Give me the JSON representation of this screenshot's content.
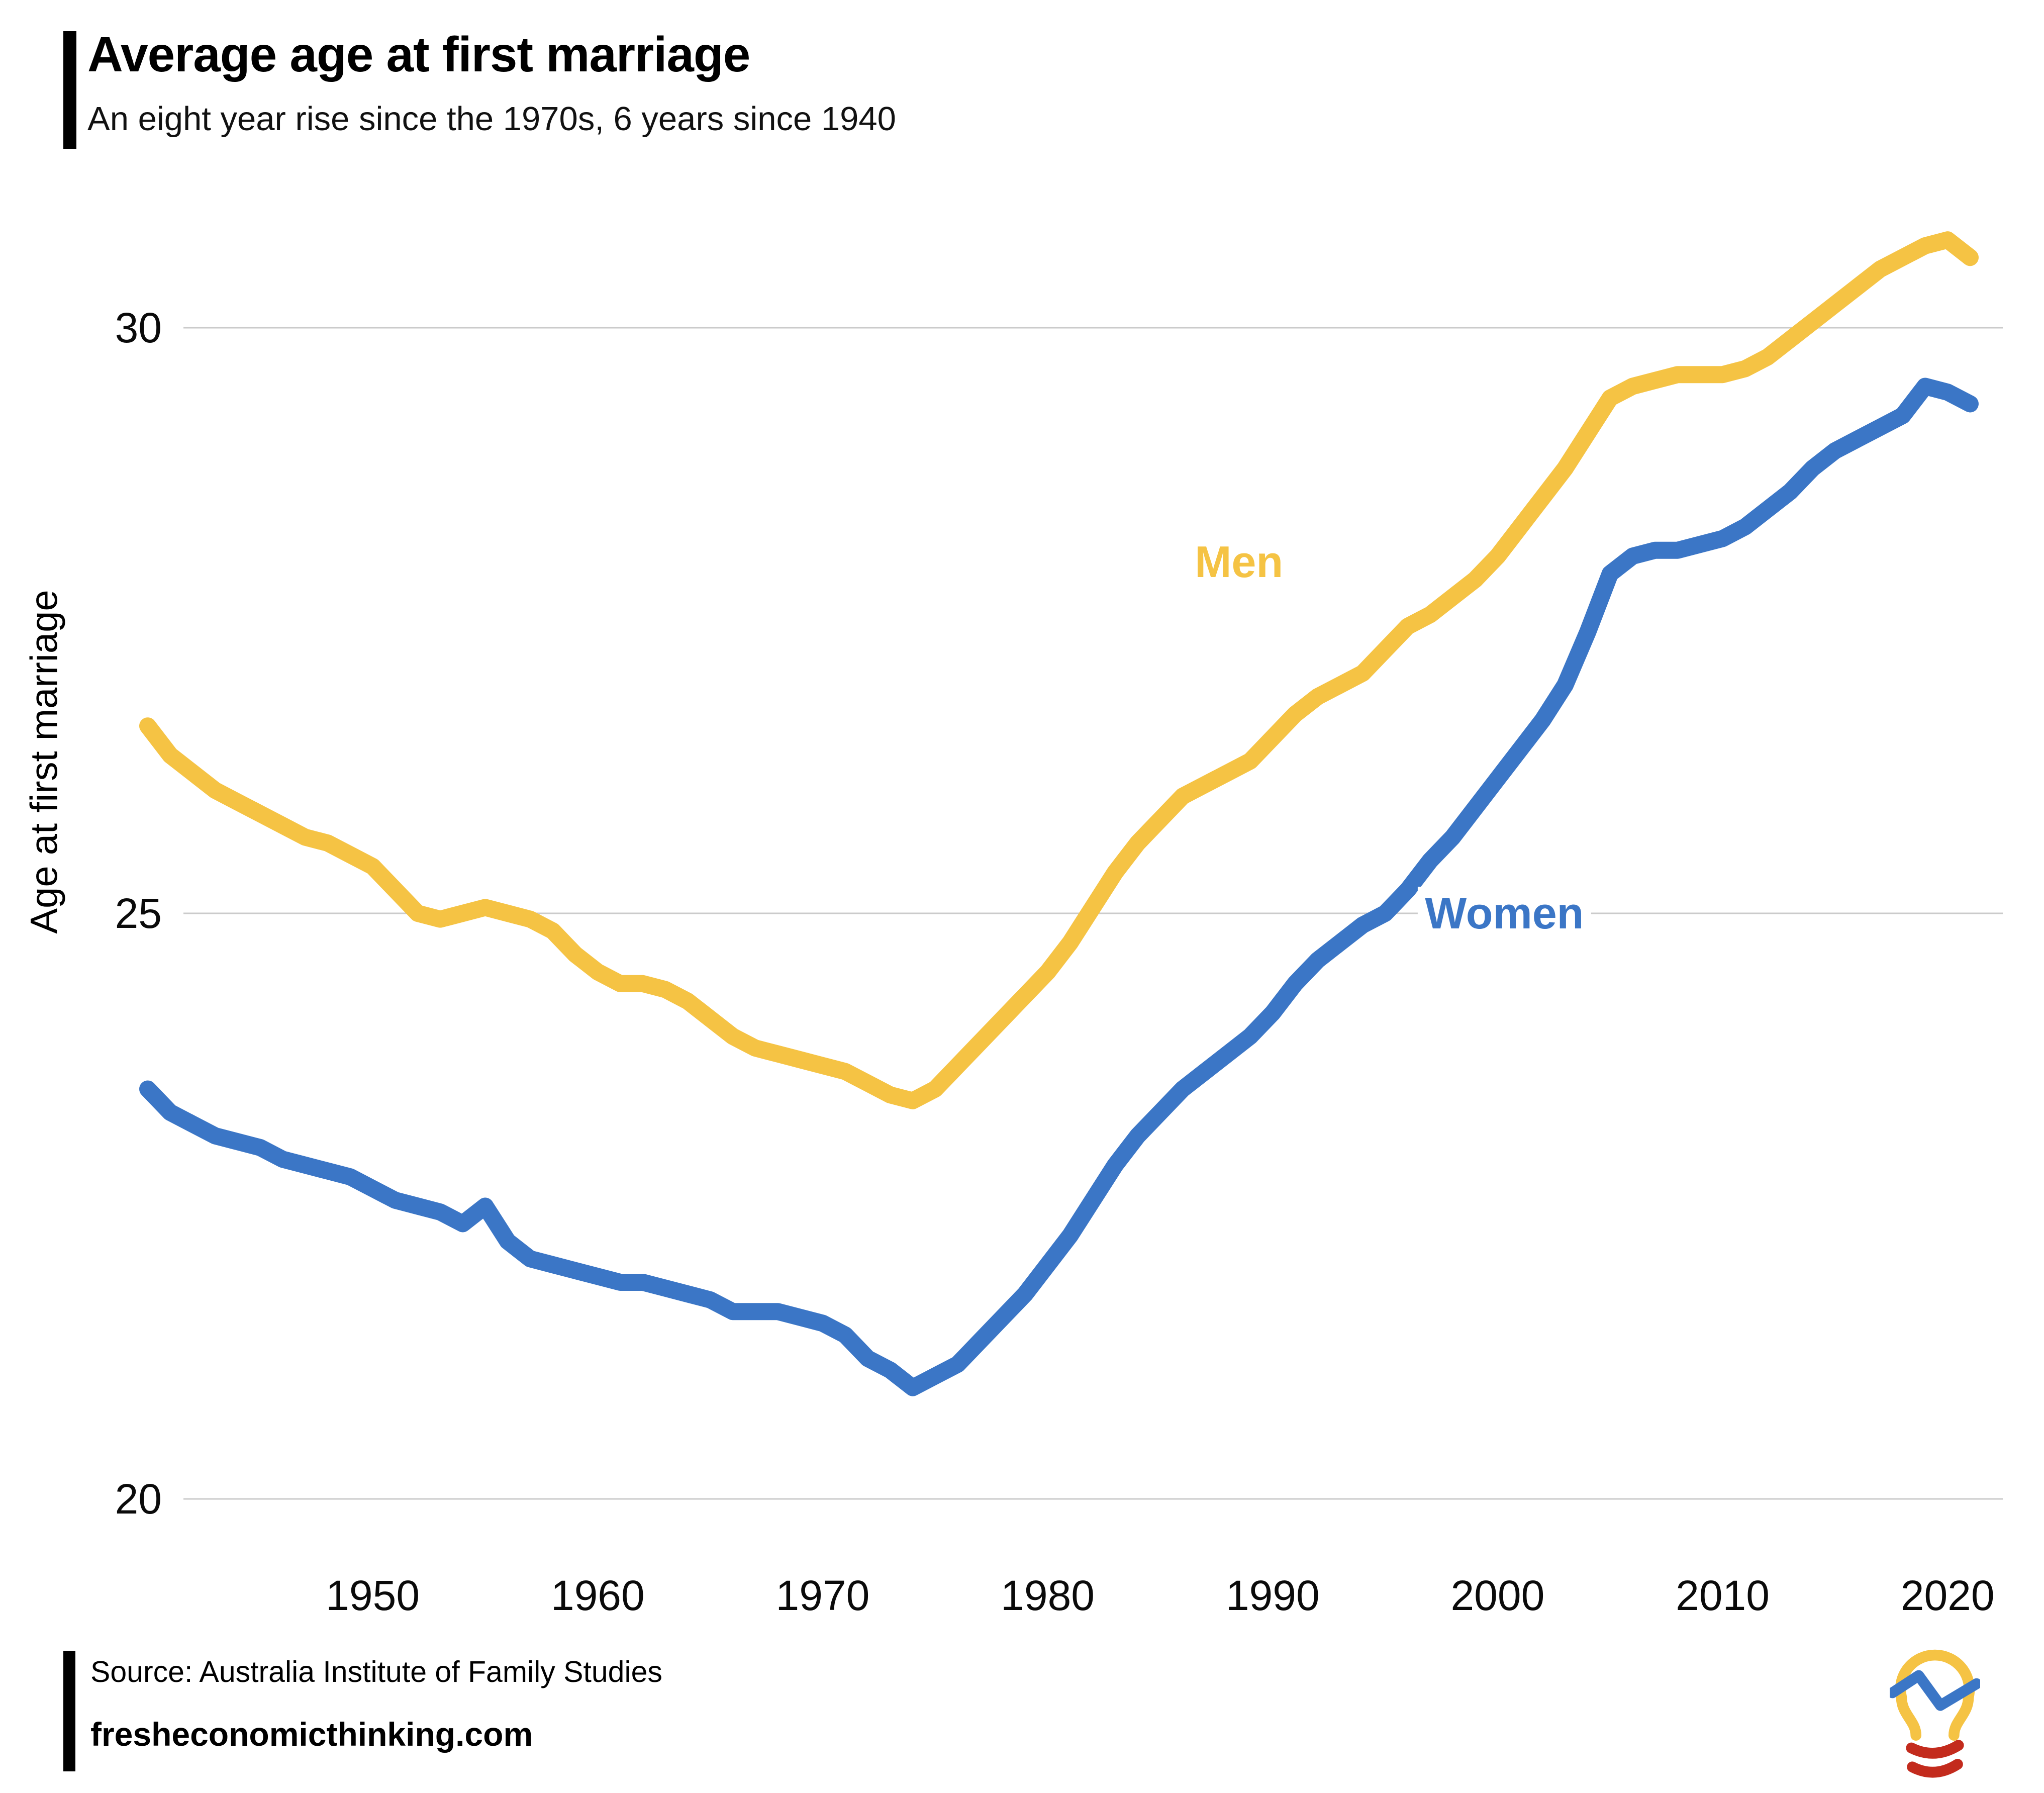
{
  "header": {
    "title": "Average age at first marriage",
    "subtitle": "An eight year rise since the 1970s, 6 years since 1940"
  },
  "footer": {
    "source": "Source: Australia Institute of Family Studies",
    "site": "fresheconomicthinking.com"
  },
  "logo": {
    "name": "fresh-economic-thinking-lightbulb-logo",
    "bulb_color": "#F5C344",
    "zigzag_color": "#3B76C6",
    "base_color": "#C32B1D"
  },
  "chart_data": {
    "type": "line",
    "title": "Average age at first marriage",
    "subtitle": "An eight year rise since the 1970s, 6 years since 1940",
    "xlabel": "",
    "ylabel": "Age at first marriage",
    "xlim": [
      1940,
      2021
    ],
    "ylim": [
      19.5,
      31.6
    ],
    "x_ticks": [
      1950,
      1960,
      1970,
      1980,
      1990,
      2000,
      2010,
      2020
    ],
    "y_ticks": [
      20,
      25,
      30
    ],
    "grid": "horizontal-only",
    "gridline_color": "#CBCBCB",
    "legend_position": "inline-labels",
    "years": [
      1940,
      1941,
      1942,
      1943,
      1944,
      1945,
      1946,
      1947,
      1948,
      1949,
      1950,
      1951,
      1952,
      1953,
      1954,
      1955,
      1956,
      1957,
      1958,
      1959,
      1960,
      1961,
      1962,
      1963,
      1964,
      1965,
      1966,
      1967,
      1968,
      1969,
      1970,
      1971,
      1972,
      1973,
      1974,
      1975,
      1976,
      1977,
      1978,
      1979,
      1980,
      1981,
      1982,
      1983,
      1984,
      1985,
      1986,
      1987,
      1988,
      1989,
      1990,
      1991,
      1992,
      1993,
      1994,
      1995,
      1996,
      1997,
      1998,
      1999,
      2000,
      2001,
      2002,
      2003,
      2004,
      2005,
      2006,
      2007,
      2008,
      2009,
      2010,
      2011,
      2012,
      2013,
      2014,
      2015,
      2016,
      2017,
      2018,
      2019,
      2020,
      2021
    ],
    "series": [
      {
        "name": "Men",
        "color": "#F5C344",
        "label": {
          "text": "Men",
          "year": 1988.5,
          "value": 28.0
        },
        "values": [
          26.6,
          26.35,
          26.2,
          26.05,
          25.95,
          25.85,
          25.75,
          25.65,
          25.6,
          25.5,
          25.4,
          25.2,
          25.0,
          24.95,
          25.0,
          25.05,
          25.0,
          24.95,
          24.85,
          24.65,
          24.5,
          24.4,
          24.4,
          24.35,
          24.25,
          24.1,
          23.95,
          23.85,
          23.8,
          23.75,
          23.7,
          23.65,
          23.55,
          23.45,
          23.4,
          23.5,
          23.7,
          23.9,
          24.1,
          24.3,
          24.5,
          24.75,
          25.05,
          25.35,
          25.6,
          25.8,
          26.0,
          26.1,
          26.2,
          26.3,
          26.5,
          26.7,
          26.85,
          26.95,
          27.05,
          27.25,
          27.45,
          27.55,
          27.7,
          27.85,
          28.05,
          28.3,
          28.55,
          28.8,
          29.1,
          29.4,
          29.5,
          29.55,
          29.6,
          29.6,
          29.6,
          29.65,
          29.75,
          29.9,
          30.05,
          30.2,
          30.35,
          30.5,
          30.6,
          30.7,
          30.75,
          30.6
        ]
      },
      {
        "name": "Women",
        "color": "#3B76C6",
        "label": {
          "text": "Women",
          "year": 2000.3,
          "value": 25.0
        },
        "values": [
          23.5,
          23.3,
          23.2,
          23.1,
          23.05,
          23.0,
          22.9,
          22.85,
          22.8,
          22.75,
          22.65,
          22.55,
          22.5,
          22.45,
          22.35,
          22.5,
          22.2,
          22.05,
          22.0,
          21.95,
          21.9,
          21.85,
          21.85,
          21.8,
          21.75,
          21.7,
          21.6,
          21.6,
          21.6,
          21.55,
          21.5,
          21.4,
          21.2,
          21.1,
          20.95,
          21.05,
          21.15,
          21.35,
          21.55,
          21.75,
          22.0,
          22.25,
          22.55,
          22.85,
          23.1,
          23.3,
          23.5,
          23.65,
          23.8,
          23.95,
          24.15,
          24.4,
          24.6,
          24.75,
          24.9,
          25.0,
          25.2,
          25.45,
          25.65,
          25.9,
          26.15,
          26.4,
          26.65,
          26.95,
          27.4,
          27.9,
          28.05,
          28.1,
          28.1,
          28.15,
          28.2,
          28.3,
          28.45,
          28.6,
          28.8,
          28.95,
          29.05,
          29.15,
          29.25,
          29.5,
          29.45,
          29.35
        ]
      }
    ]
  }
}
